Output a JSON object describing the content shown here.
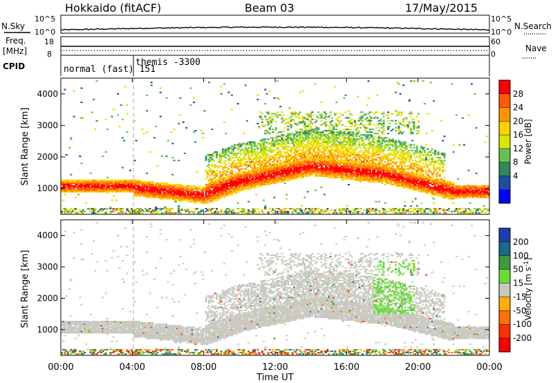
{
  "header": {
    "left": "Hokkaido (fitACF)",
    "center": "Beam 03",
    "right": "17/May/2015"
  },
  "top_panels": {
    "nsky": {
      "label": "N.Sky",
      "tick_top": "10^5",
      "tick_bottom": "10^0",
      "right_label": "N.Search",
      "right_tick_top": "10^5",
      "right_tick_bottom": "10^0"
    },
    "freq": {
      "label_line1": "Freq.",
      "label_line2": "[MHz]",
      "tick_top": "18",
      "tick_bottom": "8",
      "right_label": "Nave",
      "right_tick_top": "60",
      "right_tick_bottom": "0"
    },
    "cpid": {
      "label": "CPID",
      "annotation_1": "normal (fast) 151",
      "annotation_2": "themis -3300"
    }
  },
  "power_colorbar": {
    "label": "Power [dB]",
    "ticks": [
      "28",
      "24",
      "20",
      "16",
      "12",
      "8",
      "4"
    ],
    "colors": [
      "#ff0000",
      "#ff5a00",
      "#ff9600",
      "#ffd200",
      "#d4e800",
      "#66c050",
      "#2e8a5a",
      "#1a4fa0",
      "#0000ff"
    ]
  },
  "velocity_colorbar": {
    "label": "Velocity [m s^-1]",
    "label_main": "Velocity [m s",
    "label_exp": "-1",
    "label_end": "]",
    "ticks": [
      "200",
      "100",
      "50",
      "15",
      "-15",
      "-50",
      "-100",
      "-200"
    ],
    "colors": [
      "#1a3fb0",
      "#1a6a8a",
      "#3c9b3c",
      "#66dd33",
      "#c8c8c0",
      "#ffb000",
      "#ff7000",
      "#ff3000",
      "#ff0000"
    ]
  },
  "chart_data": [
    {
      "type": "heatmap",
      "title": "Power",
      "ylabel": "Slant Range [km]",
      "xlabel": "Time UT",
      "x_tick_labels": [
        "00:00",
        "04:00",
        "08:00",
        "12:00",
        "16:00",
        "20:00",
        "00:00"
      ],
      "y_tick_labels": [
        "1000",
        "2000",
        "3000",
        "4000"
      ],
      "xlim": [
        0,
        24
      ],
      "ylim": [
        180,
        4500
      ],
      "colorbar_label": "Power [dB]",
      "zlim": [
        0,
        30
      ],
      "scatter_regions": [
        {
          "desc": "near range band",
          "x": [
            0,
            24
          ],
          "y": [
            700,
            1500
          ],
          "value": 26
        },
        {
          "desc": "arc",
          "x": [
            8,
            22
          ],
          "y": [
            1500,
            2600
          ],
          "value": 20
        },
        {
          "desc": "far scatter",
          "x": [
            10,
            20
          ],
          "y": [
            2600,
            3200
          ],
          "value": 14
        }
      ]
    },
    {
      "type": "heatmap",
      "title": "Velocity",
      "ylabel": "Slant Range [km]",
      "xlabel": "Time UT",
      "x_tick_labels": [
        "00:00",
        "04:00",
        "08:00",
        "12:00",
        "16:00",
        "20:00",
        "00:00"
      ],
      "y_tick_labels": [
        "1000",
        "2000",
        "3000",
        "4000"
      ],
      "xlim": [
        0,
        24
      ],
      "ylim": [
        180,
        4500
      ],
      "colorbar_label": "Velocity [m s^-1]",
      "zlim": [
        -250,
        250
      ],
      "scatter_regions": [
        {
          "desc": "low velocity band",
          "x": [
            0,
            24
          ],
          "y": [
            600,
            2600
          ],
          "value": 0
        },
        {
          "desc": "positive velocity patch",
          "x": [
            17.5,
            19.5
          ],
          "y": [
            1500,
            3200
          ],
          "value": 40
        }
      ]
    }
  ]
}
